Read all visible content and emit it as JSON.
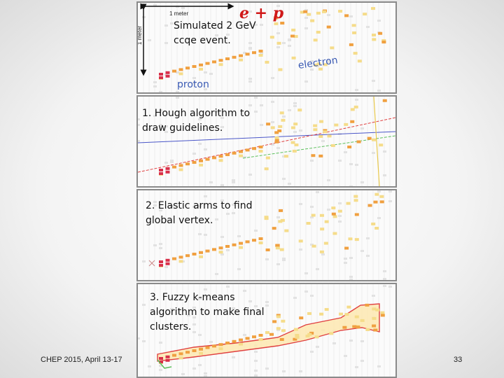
{
  "panel1": {
    "scale_h": "1 meter",
    "scale_v": "1 meter",
    "formula": "e + p",
    "caption_line1": "Simulated 2 GeV",
    "caption_line2": "ccqe event.",
    "label_electron": "electron",
    "label_proton": "proton"
  },
  "panel2": {
    "line1": "1. Hough algorithm to",
    "line2": "draw guidelines."
  },
  "panel3": {
    "line1": "2. Elastic arms to find",
    "line2": "global vertex."
  },
  "panel4": {
    "line1": "3. Fuzzy k-means",
    "line2": "algorithm to make final",
    "line3": "clusters."
  },
  "footer": {
    "conference": "CHEP 2015,  April 13-17",
    "page": "33"
  },
  "colors": {
    "hit_red": "#d8304a",
    "hit_orange": "#f0a040",
    "hit_yellow": "#f5dc8a",
    "hough_red": "#e04040",
    "hough_blue": "#4a56c8",
    "hough_green": "#5cc05c",
    "cluster_fill": "#fde8b0"
  }
}
